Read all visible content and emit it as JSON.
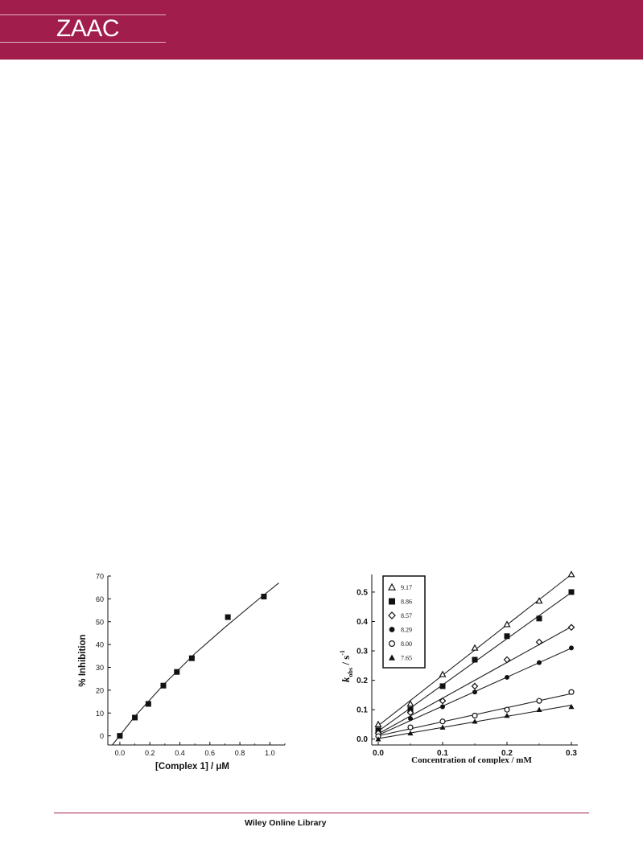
{
  "header": {
    "logo_text": "ZAAC",
    "banner_color": "#a11d4b"
  },
  "footer": {
    "text": "Wiley Online Library"
  },
  "chart_data": [
    {
      "type": "scatter",
      "title": "",
      "xlabel": "[Complex 1] / μM",
      "ylabel": "% Inhibition",
      "xlim": [
        -0.08,
        1.1
      ],
      "ylim": [
        -4,
        70
      ],
      "xticks": [
        "0.0",
        "0.2",
        "0.4",
        "0.6",
        "0.8",
        "1.0"
      ],
      "yticks": [
        "0",
        "10",
        "20",
        "30",
        "40",
        "50",
        "60",
        "70"
      ],
      "marker": "filled-square",
      "grid": false,
      "fit": "curve",
      "points": [
        {
          "x": 0.0,
          "y": 0
        },
        {
          "x": 0.1,
          "y": 8
        },
        {
          "x": 0.19,
          "y": 14
        },
        {
          "x": 0.29,
          "y": 22
        },
        {
          "x": 0.38,
          "y": 28
        },
        {
          "x": 0.48,
          "y": 34
        },
        {
          "x": 0.72,
          "y": 52
        },
        {
          "x": 0.96,
          "y": 61
        }
      ],
      "fit_points": [
        {
          "x": -0.05,
          "y": -4
        },
        {
          "x": 0.1,
          "y": 8.5
        },
        {
          "x": 0.3,
          "y": 23
        },
        {
          "x": 0.5,
          "y": 36
        },
        {
          "x": 0.7,
          "y": 47.5
        },
        {
          "x": 0.9,
          "y": 58.5
        },
        {
          "x": 1.06,
          "y": 67
        }
      ]
    },
    {
      "type": "line",
      "title": "",
      "xlabel": "Concentration of complex / mM",
      "ylabel": "k",
      "ylabel_sub": "obs",
      "ylabel_unit": "/ s",
      "ylabel_sup": "-1",
      "xlim": [
        -0.01,
        0.31
      ],
      "ylim": [
        -0.02,
        0.56
      ],
      "xticks": [
        "0.0",
        "0.1",
        "0.2",
        "0.3"
      ],
      "yticks": [
        "0.0",
        "0.1",
        "0.2",
        "0.3",
        "0.4",
        "0.5"
      ],
      "grid": false,
      "legend_position": "top-left",
      "x": [
        0.0,
        0.05,
        0.1,
        0.15,
        0.2,
        0.25,
        0.3
      ],
      "series": [
        {
          "name": "9.17",
          "marker": "open-triangle",
          "values": [
            0.05,
            0.12,
            0.22,
            0.31,
            0.39,
            0.47,
            0.56
          ]
        },
        {
          "name": "8.86",
          "marker": "filled-square",
          "values": [
            0.03,
            0.1,
            0.18,
            0.27,
            0.35,
            0.41,
            0.5
          ]
        },
        {
          "name": "8.57",
          "marker": "open-diamond",
          "values": [
            0.02,
            0.09,
            0.13,
            0.18,
            0.27,
            0.33,
            0.38
          ]
        },
        {
          "name": "8.29",
          "marker": "filled-circle",
          "values": [
            0.01,
            0.07,
            0.11,
            0.16,
            0.21,
            0.26,
            0.31
          ]
        },
        {
          "name": "8.00",
          "marker": "open-circle",
          "values": [
            0.01,
            0.04,
            0.06,
            0.08,
            0.1,
            0.13,
            0.16
          ]
        },
        {
          "name": "7.65",
          "marker": "filled-triangle",
          "values": [
            0.0,
            0.02,
            0.04,
            0.06,
            0.08,
            0.1,
            0.11
          ]
        }
      ]
    }
  ]
}
